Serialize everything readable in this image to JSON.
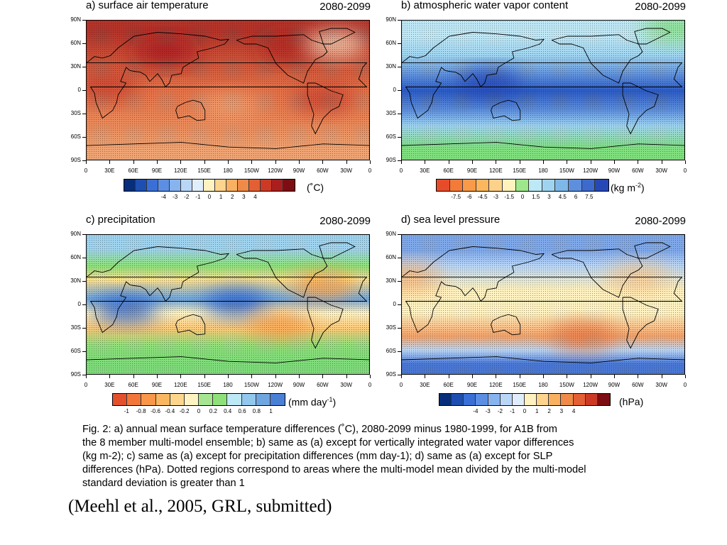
{
  "panels": [
    {
      "id": "a",
      "title": "a) surface air temperature",
      "period": "2080-2099",
      "unit": "(˚C)",
      "base_color": "#dd6c3c",
      "bands": [
        {
          "lat": 75,
          "color": "#b4342a"
        },
        {
          "lat": 0,
          "color": "#e4734a"
        },
        {
          "lat": -50,
          "color": "#eb8e5e"
        },
        {
          "lat": -75,
          "color": "#f0a474"
        }
      ],
      "blobs": [
        {
          "lon": 100,
          "lat": 50,
          "color": "#a81f20"
        },
        {
          "lon": 260,
          "lat": 55,
          "color": "#ad2624"
        },
        {
          "lon": 300,
          "lat": -10,
          "color": "#c84330"
        },
        {
          "lon": 25,
          "lat": 5,
          "color": "#c84330"
        },
        {
          "lon": 180,
          "lat": -20,
          "color": "#f2a070"
        },
        {
          "lon": 315,
          "lat": 60,
          "color": "#f6d6b8"
        }
      ],
      "colorbar": {
        "colors": [
          "#062e7a",
          "#1d4fb0",
          "#3a6fd6",
          "#5c8fe4",
          "#87b3ef",
          "#b9d6f7",
          "#e0eefb",
          "#fff2c0",
          "#fdd38e",
          "#f9b061",
          "#f08a48",
          "#e35f34",
          "#cc3a26",
          "#aa1e1e",
          "#7c0d12"
        ],
        "labels": [
          "-4",
          "-3",
          "-2",
          "-1",
          "0",
          "1",
          "2",
          "3",
          "4"
        ]
      }
    },
    {
      "id": "b",
      "title": "b) atmospheric water vapor content",
      "period": "2080-2099",
      "unit": "(kg m",
      "unit_sup": "-2",
      "unit_tail": ")",
      "base_color": "#6fa6df",
      "bands": [
        {
          "lat": 70,
          "color": "#bfe8f6"
        },
        {
          "lat": 45,
          "color": "#9fd4f0"
        },
        {
          "lat": 20,
          "color": "#5e8fdc"
        },
        {
          "lat": 0,
          "color": "#2c5bc4"
        },
        {
          "lat": -25,
          "color": "#5e8fdc"
        },
        {
          "lat": -45,
          "color": "#9fd4f0"
        },
        {
          "lat": -75,
          "color": "#80e07e"
        }
      ],
      "blobs": [
        {
          "lon": 110,
          "lat": 10,
          "color": "#2648b6"
        },
        {
          "lon": 345,
          "lat": 80,
          "color": "#80e07e"
        }
      ],
      "colorbar": {
        "colors": [
          "#e74c2a",
          "#f47a3a",
          "#f89a4a",
          "#fbb65e",
          "#fdd18a",
          "#fff2bd",
          "#9ee78a",
          "#bde8f6",
          "#9fd4f0",
          "#7eb8e8",
          "#5e8fdc",
          "#3d6bcd",
          "#2648b6"
        ],
        "labels": [
          "-7.5",
          "-6",
          "-4.5",
          "-3",
          "-1.5",
          "0",
          "1.5",
          "3",
          "4.5",
          "6",
          "7.5"
        ]
      }
    },
    {
      "id": "c",
      "title": "c) precipitation",
      "period": "2080-2099",
      "unit": "(mm day",
      "unit_sup": "-1",
      "unit_tail": ")",
      "base_color": "#a8e38a",
      "bands": [
        {
          "lat": 72,
          "color": "#9fd4f0"
        },
        {
          "lat": 50,
          "color": "#8ee07a"
        },
        {
          "lat": 32,
          "color": "#fde08e"
        },
        {
          "lat": 8,
          "color": "#6fa6df"
        },
        {
          "lat": -10,
          "color": "#fff2c0"
        },
        {
          "lat": -30,
          "color": "#fcc978"
        },
        {
          "lat": -52,
          "color": "#8ee07a"
        },
        {
          "lat": -75,
          "color": "#7fdc7a"
        }
      ],
      "blobs": [
        {
          "lon": 50,
          "lat": -5,
          "color": "#2f63cc"
        },
        {
          "lon": 190,
          "lat": 3,
          "color": "#2f63cc"
        },
        {
          "lon": 245,
          "lat": -25,
          "color": "#f6a04e"
        },
        {
          "lon": 300,
          "lat": 25,
          "color": "#f6a04e"
        }
      ],
      "colorbar": {
        "colors": [
          "#e4502c",
          "#f2763a",
          "#f8964a",
          "#fbb760",
          "#fdd68c",
          "#fff3c2",
          "#a6e690",
          "#8ee07a",
          "#bde8f6",
          "#92c8ee",
          "#6fa6df",
          "#4a7fd6"
        ],
        "labels": [
          "-1",
          "-0.8",
          "-0.6",
          "-0.4",
          "-0.2",
          "0",
          "0.2",
          "0.4",
          "0.6",
          "0.8",
          "1"
        ]
      }
    },
    {
      "id": "d",
      "title": "d) sea level pressure",
      "period": "2080-2099",
      "unit": "(hPa)",
      "base_color": "#fff5c4",
      "bands": [
        {
          "lat": 70,
          "color": "#7ea8ea"
        },
        {
          "lat": 50,
          "color": "#b9d6f7"
        },
        {
          "lat": 20,
          "color": "#fff2c0"
        },
        {
          "lat": -10,
          "color": "#fff2c0"
        },
        {
          "lat": -40,
          "color": "#f4a36a"
        },
        {
          "lat": -58,
          "color": "#b9d6f7"
        },
        {
          "lat": -75,
          "color": "#4a78d4"
        }
      ],
      "blobs": [
        {
          "lon": 230,
          "lat": -40,
          "color": "#e57a48"
        },
        {
          "lon": 300,
          "lat": 35,
          "color": "#fcca8c"
        },
        {
          "lon": 10,
          "lat": 35,
          "color": "#f9b574"
        }
      ],
      "colorbar": {
        "colors": [
          "#062e7a",
          "#1d4fb0",
          "#3a6fd6",
          "#5c8fe4",
          "#87b3ef",
          "#b9d6f7",
          "#e0eefb",
          "#fff2c0",
          "#fdd38e",
          "#f9b061",
          "#f08a48",
          "#e35f34",
          "#cc3a26",
          "#7c0d12"
        ],
        "labels": [
          "-4",
          "-3",
          "-2",
          "-1",
          "0",
          "1",
          "2",
          "3",
          "4"
        ]
      }
    }
  ],
  "axes": {
    "lat_labels": [
      "90N",
      "60N",
      "30N",
      "0",
      "30S",
      "60S",
      "90S"
    ],
    "lon_labels": [
      "0",
      "30E",
      "60E",
      "90E",
      "120E",
      "150E",
      "180",
      "150W",
      "120W",
      "90W",
      "60W",
      "30W",
      "0"
    ]
  },
  "caption": {
    "lines": [
      "Fig. 2: a) annual mean surface temperature differences (˚C), 2080-2099 minus 1980-1999, for A1B from",
      "the 8 member multi-model ensemble; b) same as (a) except for vertically integrated water vapor differences",
      "(kg m-2); c) same as (a) except for precipitation differences (mm day-1); d) same as (a) except for SLP",
      "differences (hPa). Dotted regions correspond to areas where the multi-model mean divided by the multi-model",
      "standard deviation is greater than 1"
    ]
  },
  "citation": "(Meehl et al., 2005, GRL, submitted)"
}
